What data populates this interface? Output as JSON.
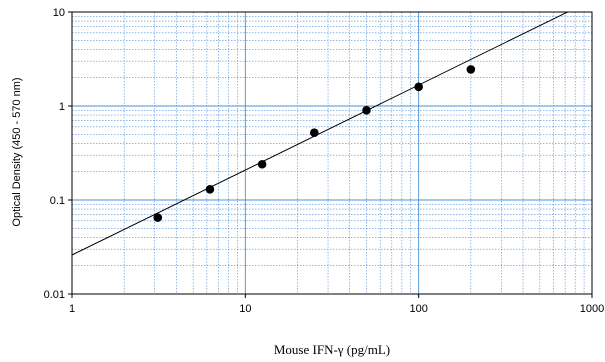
{
  "chart_data": {
    "type": "scatter",
    "title": "",
    "xlabel": "Mouse IFN-γ (pg/mL)",
    "ylabel": "Optical Density (450 - 570 nm)",
    "x_scale": "log",
    "y_scale": "log",
    "xlim": [
      1,
      1000
    ],
    "ylim": [
      0.01,
      10
    ],
    "x_ticks": [
      "1",
      "10",
      "100",
      "1000"
    ],
    "y_ticks": [
      "0.01",
      "0.1",
      "1",
      "10"
    ],
    "grid": true,
    "grid_color": "#4a8fd6",
    "series": [
      {
        "x": [
          3.125,
          6.25,
          12.5,
          25,
          50,
          100,
          200
        ],
        "y": [
          0.065,
          0.13,
          0.24,
          0.52,
          0.9,
          1.6,
          2.45
        ]
      }
    ],
    "fit_line": {
      "x": [
        1,
        1000
      ],
      "y": [
        0.026,
        13.4
      ]
    }
  }
}
